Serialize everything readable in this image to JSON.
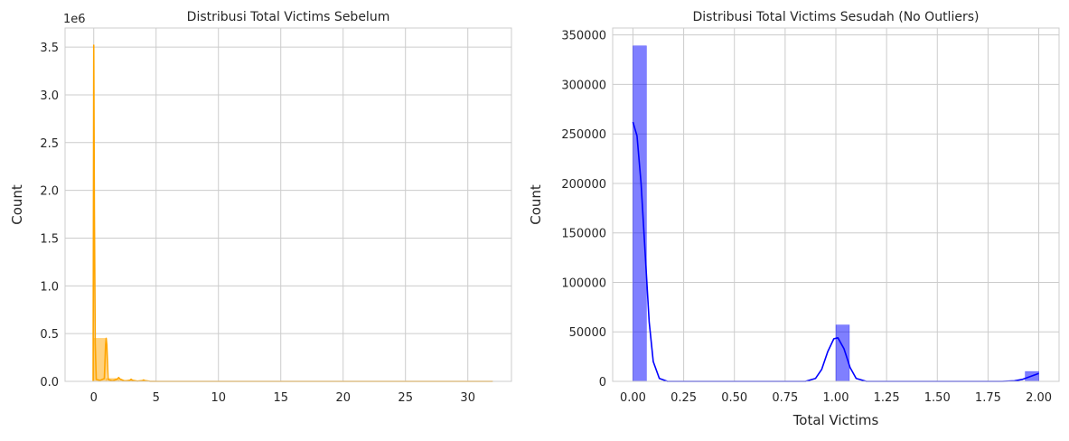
{
  "chart_data": [
    {
      "type": "histogram",
      "title": "Distribusi Total Victims Sebelum",
      "xlabel": "",
      "ylabel": "Count",
      "offset_text": "1e6",
      "xlim": [
        -2.3,
        33.5
      ],
      "ylim": [
        0,
        3700000
      ],
      "x_ticks": [
        0,
        5,
        10,
        15,
        20,
        25,
        30
      ],
      "y_ticks": [
        0,
        500000,
        1000000,
        1500000,
        2000000,
        2500000,
        3000000,
        3500000
      ],
      "y_tick_labels": [
        "0.0",
        "0.5",
        "1.0",
        "1.5",
        "2.0",
        "2.5",
        "3.0",
        "3.5"
      ],
      "grid": true,
      "color": "#FFA500",
      "bins": [
        {
          "x0": 0.0,
          "x1": 1.0,
          "count": 450000
        },
        {
          "x0": 1.0,
          "x1": 2.0,
          "count": 30000
        },
        {
          "x0": 2.0,
          "x1": 3.0,
          "count": 12000
        },
        {
          "x0": 3.0,
          "x1": 4.0,
          "count": 8000
        },
        {
          "x0": 4.0,
          "x1": 5.0,
          "count": 4000
        }
      ],
      "kde": [
        [
          -0.05,
          0
        ],
        [
          0.0,
          3520000
        ],
        [
          0.05,
          1800000
        ],
        [
          0.12,
          400000
        ],
        [
          0.2,
          20000
        ],
        [
          0.5,
          10000
        ],
        [
          0.85,
          30000
        ],
        [
          0.95,
          380000
        ],
        [
          1.0,
          450000
        ],
        [
          1.05,
          380000
        ],
        [
          1.15,
          20000
        ],
        [
          1.5,
          5000
        ],
        [
          1.9,
          25000
        ],
        [
          2.0,
          40000
        ],
        [
          2.1,
          25000
        ],
        [
          2.5,
          3000
        ],
        [
          2.9,
          12000
        ],
        [
          3.0,
          22000
        ],
        [
          3.1,
          12000
        ],
        [
          3.5,
          2000
        ],
        [
          3.9,
          8000
        ],
        [
          4.0,
          15000
        ],
        [
          4.1,
          8000
        ],
        [
          4.5,
          1000
        ],
        [
          5.0,
          0
        ],
        [
          32.0,
          0
        ]
      ]
    },
    {
      "type": "histogram",
      "title": "Distribusi Total Victims Sesudah (No Outliers)",
      "xlabel": "Total Victims",
      "ylabel": "Count",
      "xlim": [
        -0.1,
        2.1
      ],
      "ylim": [
        0,
        357000
      ],
      "x_ticks": [
        0.0,
        0.25,
        0.5,
        0.75,
        1.0,
        1.25,
        1.5,
        1.75,
        2.0
      ],
      "x_tick_labels": [
        "0.00",
        "0.25",
        "0.50",
        "0.75",
        "1.00",
        "1.25",
        "1.50",
        "1.75",
        "2.00"
      ],
      "y_ticks": [
        0,
        50000,
        100000,
        150000,
        200000,
        250000,
        300000,
        350000
      ],
      "y_tick_labels": [
        "0",
        "50000",
        "100000",
        "150000",
        "200000",
        "250000",
        "300000",
        "350000"
      ],
      "grid": true,
      "color": "#0000FF",
      "bins": [
        {
          "x0": 0.0,
          "x1": 0.0667,
          "count": 339000
        },
        {
          "x0": 1.0,
          "x1": 1.0667,
          "count": 57000
        },
        {
          "x0": 1.9333,
          "x1": 2.0,
          "count": 10000
        }
      ],
      "kde": [
        [
          0.0,
          262000
        ],
        [
          0.02,
          248000
        ],
        [
          0.04,
          200000
        ],
        [
          0.06,
          130000
        ],
        [
          0.08,
          60000
        ],
        [
          0.1,
          20000
        ],
        [
          0.13,
          3000
        ],
        [
          0.17,
          0
        ],
        [
          0.85,
          0
        ],
        [
          0.9,
          3000
        ],
        [
          0.93,
          12000
        ],
        [
          0.96,
          30000
        ],
        [
          0.99,
          43000
        ],
        [
          1.01,
          44000
        ],
        [
          1.04,
          33000
        ],
        [
          1.07,
          14000
        ],
        [
          1.1,
          3000
        ],
        [
          1.15,
          0
        ],
        [
          1.82,
          0
        ],
        [
          1.88,
          500
        ],
        [
          1.92,
          2000
        ],
        [
          1.96,
          5000
        ],
        [
          2.0,
          8000
        ]
      ]
    }
  ]
}
